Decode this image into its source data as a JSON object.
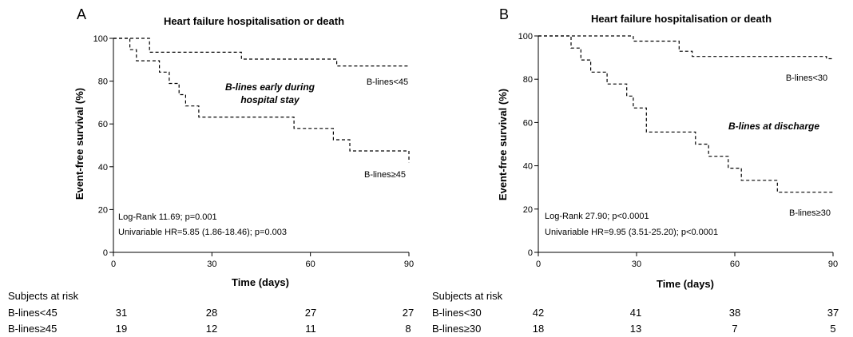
{
  "chart_data": [
    {
      "type": "line",
      "panel_label": "A",
      "title": "Heart failure hospitalisation or death",
      "xlabel": "Time (days)",
      "ylabel": "Event-free survival (%)",
      "xlim": [
        0,
        90
      ],
      "ylim": [
        0,
        100
      ],
      "xticks": [
        0,
        30,
        60,
        90
      ],
      "yticks": [
        0,
        20,
        40,
        60,
        80,
        100
      ],
      "series": [
        {
          "name": "B-lines<45",
          "points": [
            [
              0,
              100
            ],
            [
              11,
              100
            ],
            [
              11,
              93.5
            ],
            [
              39,
              93.5
            ],
            [
              39,
              90.3
            ],
            [
              68,
              90.3
            ],
            [
              68,
              87.1
            ],
            [
              90,
              87.1
            ]
          ]
        },
        {
          "name": "B-lines≥45",
          "points": [
            [
              0,
              100
            ],
            [
              5,
              100
            ],
            [
              5,
              94.7
            ],
            [
              7,
              94.7
            ],
            [
              7,
              89.5
            ],
            [
              14,
              89.5
            ],
            [
              14,
              84.2
            ],
            [
              17,
              84.2
            ],
            [
              17,
              78.9
            ],
            [
              20,
              78.9
            ],
            [
              20,
              73.7
            ],
            [
              22,
              73.7
            ],
            [
              22,
              68.4
            ],
            [
              26,
              68.4
            ],
            [
              26,
              63.2
            ],
            [
              55,
              63.2
            ],
            [
              55,
              57.9
            ],
            [
              67,
              57.9
            ],
            [
              67,
              52.6
            ],
            [
              72,
              52.6
            ],
            [
              72,
              47.4
            ],
            [
              90,
              47.4
            ],
            [
              90,
              42.1
            ]
          ]
        }
      ],
      "annotations": {
        "center": [
          "B-lines early during",
          "hospital stay"
        ],
        "stats": [
          "Log-Rank 11.69; p=0.001",
          "Univariable HR=5.85 (1.86-18.46); p=0.003"
        ]
      },
      "risk_table": {
        "header": "Subjects at risk",
        "rows": [
          {
            "label": "B-lines<45",
            "values": [
              "31",
              "28",
              "27",
              "27"
            ]
          },
          {
            "label": "B-lines≥45",
            "values": [
              "19",
              "12",
              "11",
              "8"
            ]
          }
        ]
      }
    },
    {
      "type": "line",
      "panel_label": "B",
      "title": "Heart failure hospitalisation or death",
      "xlabel": "Time (days)",
      "ylabel": "Event-free survival (%)",
      "xlim": [
        0,
        90
      ],
      "ylim": [
        0,
        100
      ],
      "xticks": [
        0,
        30,
        60,
        90
      ],
      "yticks": [
        0,
        20,
        40,
        60,
        80,
        100
      ],
      "series": [
        {
          "name": "B-lines<30",
          "points": [
            [
              0,
              100
            ],
            [
              29,
              100
            ],
            [
              29,
              97.6
            ],
            [
              43,
              97.6
            ],
            [
              43,
              92.9
            ],
            [
              47,
              92.9
            ],
            [
              47,
              90.5
            ],
            [
              88,
              90.5
            ],
            [
              88,
              89.5
            ],
            [
              90,
              89.5
            ]
          ]
        },
        {
          "name": "B-lines≥30",
          "points": [
            [
              0,
              100
            ],
            [
              10,
              100
            ],
            [
              10,
              94.4
            ],
            [
              13,
              94.4
            ],
            [
              13,
              88.9
            ],
            [
              16,
              88.9
            ],
            [
              16,
              83.3
            ],
            [
              21,
              83.3
            ],
            [
              21,
              77.8
            ],
            [
              27,
              77.8
            ],
            [
              27,
              72.2
            ],
            [
              29,
              72.2
            ],
            [
              29,
              66.7
            ],
            [
              33,
              66.7
            ],
            [
              33,
              55.6
            ],
            [
              48,
              55.6
            ],
            [
              48,
              50
            ],
            [
              52,
              50
            ],
            [
              52,
              44.4
            ],
            [
              58,
              44.4
            ],
            [
              58,
              38.9
            ],
            [
              62,
              38.9
            ],
            [
              62,
              33.3
            ],
            [
              73,
              33.3
            ],
            [
              73,
              27.8
            ],
            [
              90,
              27.8
            ]
          ]
        }
      ],
      "annotations": {
        "center": [
          "B-lines at discharge"
        ],
        "stats": [
          "Log-Rank 27.90; p<0.0001",
          "Univariable HR=9.95 (3.51-25.20); p<0.0001"
        ]
      },
      "risk_table": {
        "header": "Subjects at risk",
        "rows": [
          {
            "label": "B-lines<30",
            "values": [
              "42",
              "41",
              "38",
              "37"
            ]
          },
          {
            "label": "B-lines≥30",
            "values": [
              "18",
              "13",
              "7",
              "5"
            ]
          }
        ]
      }
    }
  ]
}
